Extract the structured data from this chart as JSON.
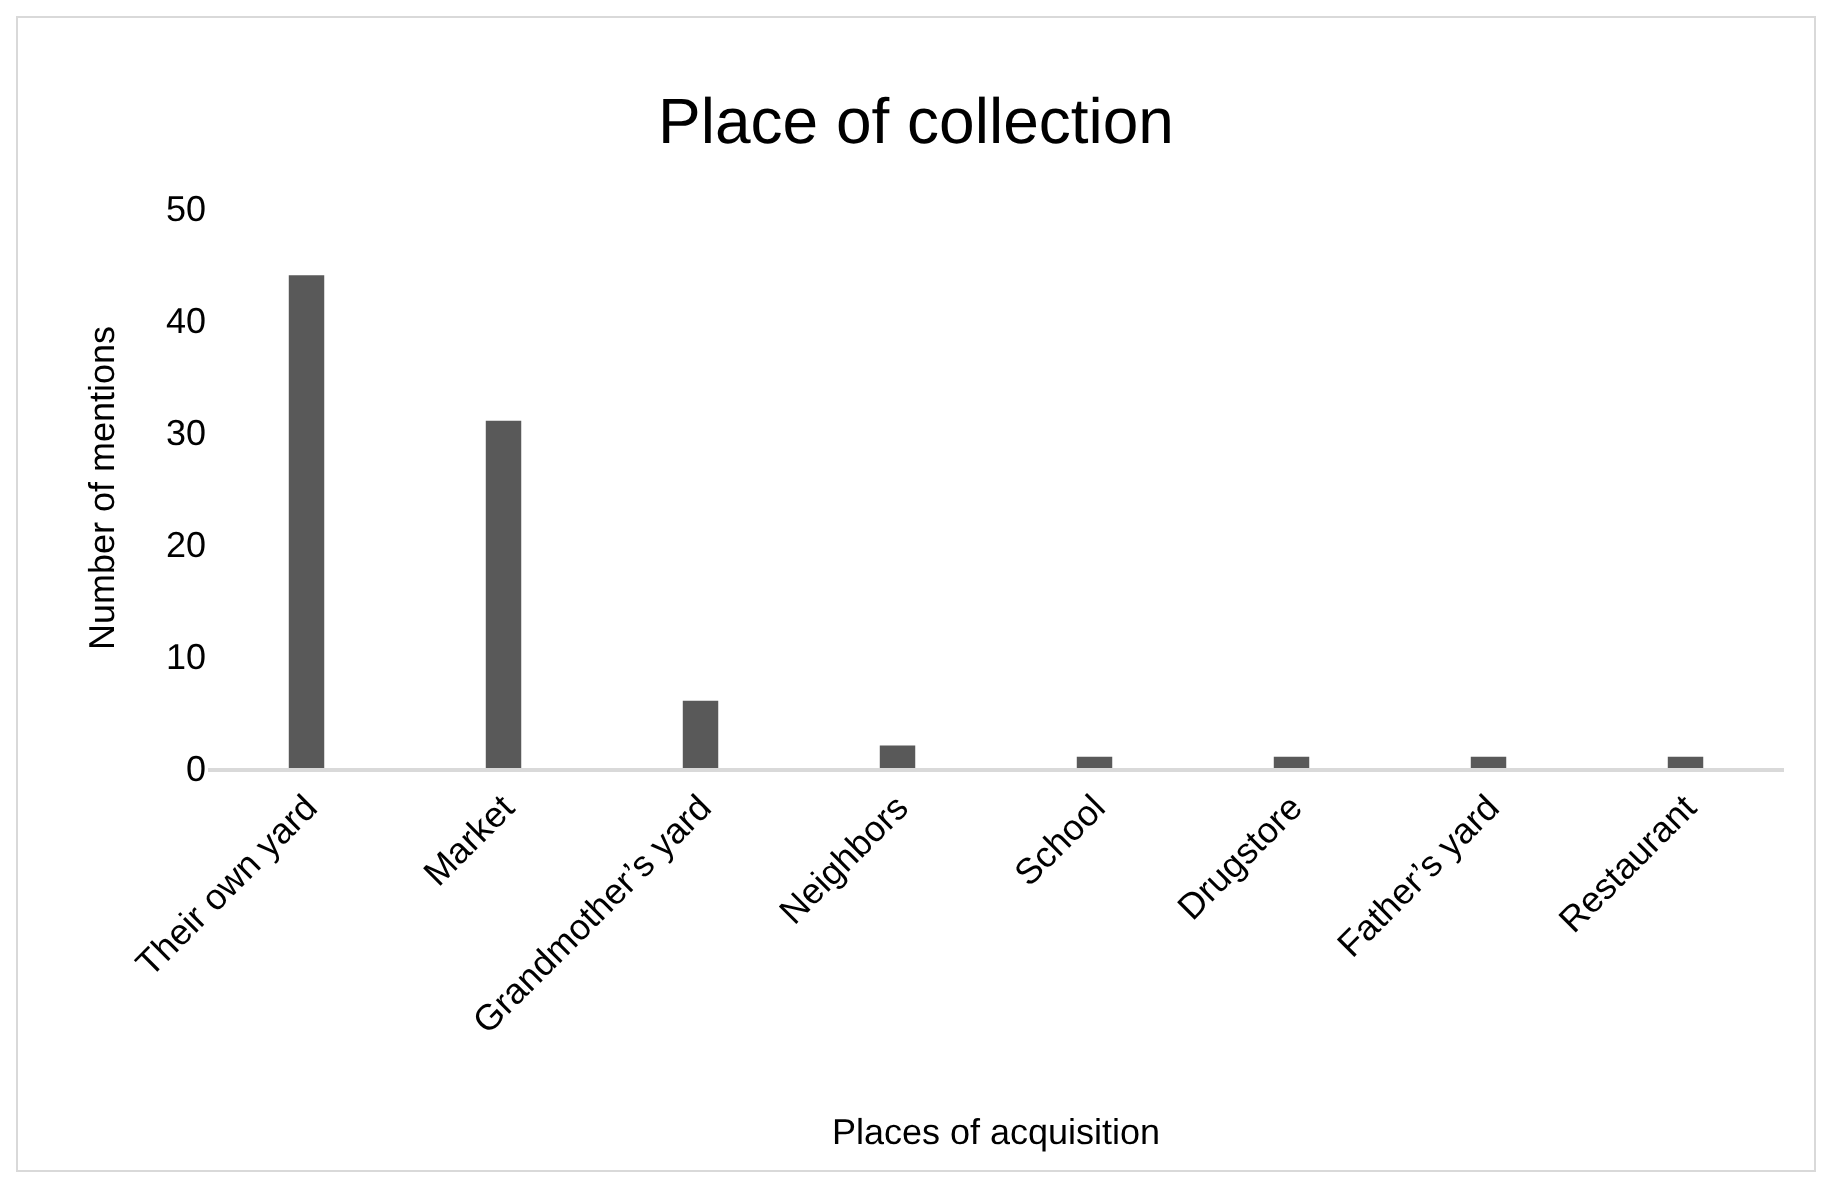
{
  "chart_data": {
    "type": "bar",
    "title": "Place of collection",
    "xlabel": "Places of acquisition",
    "ylabel": "Number of mentions",
    "categories": [
      "Their own yard",
      "Market",
      "Grandmother’s yard",
      "Neighbors",
      "School",
      "Drugstore",
      "Father’s yard",
      "Restaurant"
    ],
    "values": [
      44,
      31,
      6,
      2,
      1,
      1,
      1,
      1
    ],
    "color": "#595959",
    "ylim": [
      0,
      50
    ],
    "yticks": [
      0,
      10,
      20,
      30,
      40,
      50
    ],
    "grid": false,
    "legend": false
  }
}
